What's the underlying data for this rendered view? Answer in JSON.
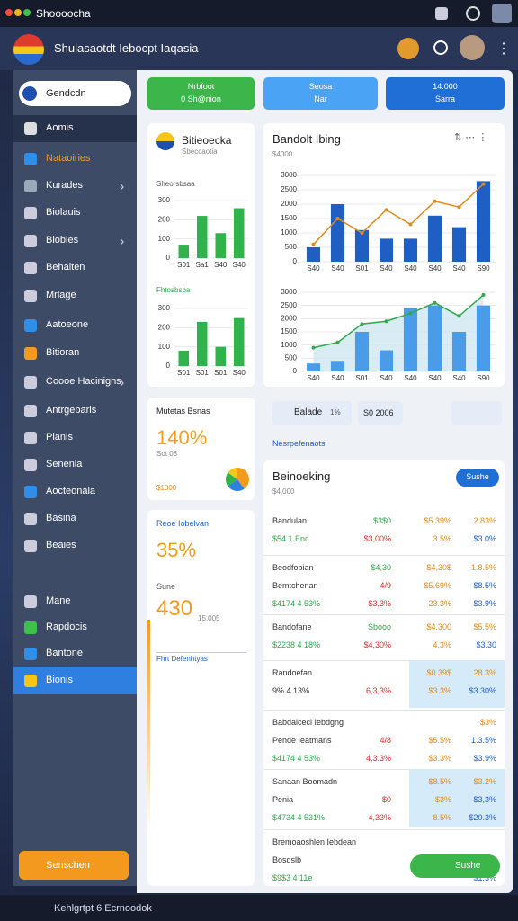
{
  "status_bar": {
    "title": "Shoooocha"
  },
  "header": {
    "title": "Shulasaotdt Iebocpt Iaqasia"
  },
  "sidebar": {
    "search": "Gendcdn",
    "items": [
      "Aomis",
      "Nataoiries",
      "Kurades",
      "Biolauis",
      "Biobies",
      "Behaiten",
      "Mrlage",
      "Aatoeone",
      "Bitioran",
      "Coooe Hacinigns",
      "Antrgebaris",
      "Pianis",
      "Senenla",
      "Aocteonala",
      "Basina",
      "Beaies"
    ],
    "lower_items": [
      "Mane",
      "Rapdocis",
      "Bantone",
      "Bionis"
    ],
    "button": "Senschen"
  },
  "actions": [
    {
      "line1": "Nrbfoot",
      "line2": "0 Sh@nion"
    },
    {
      "line1": "Seosa",
      "line2": "Nar"
    },
    {
      "line1": "14.000",
      "line2": "Sarra"
    }
  ],
  "profile_card": {
    "title": "Bitieoecka",
    "subtitle": "Sbeccaotia",
    "charts": [
      {
        "type": "bar",
        "title": "Sheorsbsaa",
        "categories": [
          "S01",
          "Sa1",
          "S40",
          "S40"
        ],
        "values": [
          70,
          220,
          130,
          260
        ],
        "color": "#2fb34a",
        "ylim": [
          0,
          300
        ],
        "yticks": [
          0,
          100,
          200,
          300
        ]
      },
      {
        "type": "bar",
        "title": "Fhtosbsba",
        "categories": [
          "S01",
          "S01",
          "S01",
          "S40"
        ],
        "values": [
          80,
          230,
          100,
          250
        ],
        "color": "#2fb34a",
        "ylim": [
          0,
          300
        ],
        "yticks": [
          0,
          100,
          200,
          300
        ]
      }
    ]
  },
  "metric_card": {
    "title": "Mutetas Bsnas",
    "value": "140%",
    "sub": "Sot 08",
    "note": "$1000",
    "pie": {
      "values": [
        40,
        25,
        20,
        15
      ],
      "colors": [
        "#f39a1e",
        "#2f7fe0",
        "#2fb34a",
        "#f5c518"
      ]
    }
  },
  "goal_card": {
    "title": "Reoe Iobelvan",
    "percent": "35%",
    "label": "Sune",
    "value": "430",
    "value_note": "15,005",
    "link": "Fhrt Defenhtyas"
  },
  "main_chart_card": {
    "title": "Bandolt Ibing",
    "subtitle": "$4000",
    "charts": [
      {
        "type": "bar_line",
        "categories": [
          "S40",
          "S40",
          "S01",
          "S40",
          "S40",
          "S40",
          "S40",
          "S90"
        ],
        "values": [
          500,
          2000,
          1100,
          800,
          800,
          1600,
          1200,
          2800
        ],
        "color": "#1f5fc4",
        "line_values": [
          600,
          1500,
          1000,
          1800,
          1300,
          2100,
          1900,
          2700
        ],
        "line_color": "#e08a1e",
        "ylim": [
          0,
          3000
        ],
        "yticks": [
          0,
          500,
          1000,
          1500,
          2000,
          2500,
          3000
        ]
      },
      {
        "type": "area_bar",
        "categories": [
          "S40",
          "S40",
          "S01",
          "S40",
          "S40",
          "S40",
          "S40",
          "S90"
        ],
        "values": [
          300,
          400,
          1500,
          800,
          2400,
          2500,
          1500,
          2500
        ],
        "color": "#4a9be8",
        "line_values": [
          900,
          1100,
          1800,
          1900,
          2200,
          2600,
          2100,
          2900
        ],
        "line_color": "#2fa84a",
        "ylim": [
          0,
          3000
        ],
        "yticks": [
          0,
          500,
          1000,
          1500,
          2000,
          2500,
          3000
        ]
      }
    ]
  },
  "toolbar": {
    "filter": "Balade",
    "filter_tag": "1%",
    "date": "S0 2006",
    "link": "Nesrpefenaots"
  },
  "table": {
    "title": "Beinoeking",
    "subtitle": "$4,000",
    "button": "Sushe",
    "groups": [
      {
        "lines": [
          {
            "label": "Bandulan",
            "cells": [
              "$3$0",
              "$5.39%",
              "2.83%"
            ]
          },
          {
            "label": "$54 1 Enc",
            "cells": [
              "$3,00%",
              "3.5%",
              "$3.0%"
            ]
          }
        ]
      },
      {
        "lines": [
          {
            "label": "Beodfobian",
            "cells": [
              "$4,30",
              "$4,30$",
              "1.8.5%"
            ]
          },
          {
            "label": "Bemtchenan",
            "cells": [
              "4/9",
              "$5.69%",
              "$8.5%"
            ]
          },
          {
            "label": "$4174 4 53%",
            "cells": [
              "$3,3%",
              "23.3%",
              "$3.9%"
            ]
          }
        ]
      },
      {
        "lines": [
          {
            "label": "Bandofane",
            "cells": [
              "Sbooo",
              "$4.300",
              "$5.5%"
            ]
          },
          {
            "label": "$2238 4 18%",
            "cells": [
              "$4,30%",
              "4,3%",
              "$3.30"
            ]
          }
        ]
      },
      {
        "highlighted": true,
        "lines": [
          {
            "label": "Randoefan",
            "cells": [
              "$0.39$",
              "28.3%"
            ]
          },
          {
            "label": "9% 4 13%",
            "cells": [
              "6,3,3%",
              "$3.3%",
              "$3.30%"
            ]
          }
        ]
      },
      {
        "lines": [
          {
            "label": "Babdalcecl Iebdgng",
            "cells": [
              "$3%"
            ]
          },
          {
            "label": "Pende Ieatmans",
            "cells": [
              "4/8",
              "$5.5%",
              "1.3.5%"
            ]
          },
          {
            "label": "$4174 4 53%",
            "cells": [
              "4,3.3%",
              "$3.3%",
              "$3.9%"
            ]
          }
        ]
      },
      {
        "highlighted": true,
        "lines": [
          {
            "label": "Sanaan Boomadn",
            "cells": [
              "$8.5%",
              "$3.2%"
            ]
          },
          {
            "label": "Penia",
            "cells": [
              "$0",
              "$3%",
              "$3,3%"
            ]
          },
          {
            "label": "$4734 4 531%",
            "cells": [
              "4,33%",
              "8.5%",
              "$20.3%"
            ]
          }
        ]
      },
      {
        "lines": [
          {
            "label": "Bremoaoshlen Iebdean"
          },
          {
            "label": "Bosdslb"
          },
          {
            "label": "$9$3 4 11e",
            "cells": [
              "$1.3%"
            ]
          }
        ]
      }
    ],
    "footer_button": "Sushe"
  },
  "bottom_bar": {
    "text": "Kehlgrtpt 6 Ecrnoodok"
  }
}
